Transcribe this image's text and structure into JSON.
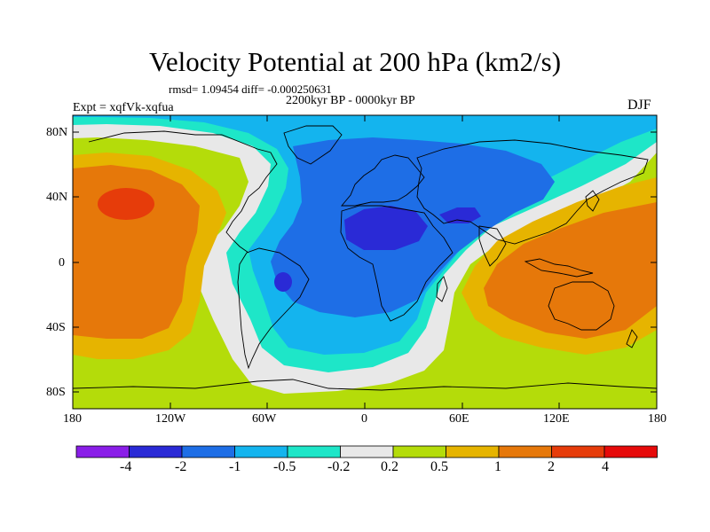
{
  "title": "Velocity Potential at 200 hPa (km2/s)",
  "stats_line": "rmsd= 1.09454 diff= -0.000250631",
  "period_line": "2200kyr BP - 0000kyr BP",
  "experiment_line": "Expt = xqfVk-xqfua",
  "season": "DJF",
  "lat_labels": [
    "80N",
    "40N",
    "0",
    "40S",
    "80S"
  ],
  "lon_labels": [
    "180",
    "120W",
    "60W",
    "0",
    "60E",
    "120E",
    "180"
  ],
  "colorbar": {
    "labels": [
      "-4",
      "-2",
      "-1",
      "-0.5",
      "-0.2",
      "0.2",
      "0.5",
      "1",
      "2",
      "4"
    ],
    "colors": [
      "#8a1ee8",
      "#2a2ad6",
      "#1e6ee6",
      "#14b4ee",
      "#1ee6c8",
      "#e8e8e8",
      "#b4dc0a",
      "#e6b400",
      "#e6780a",
      "#e63c0a",
      "#e60a0a"
    ]
  }
}
